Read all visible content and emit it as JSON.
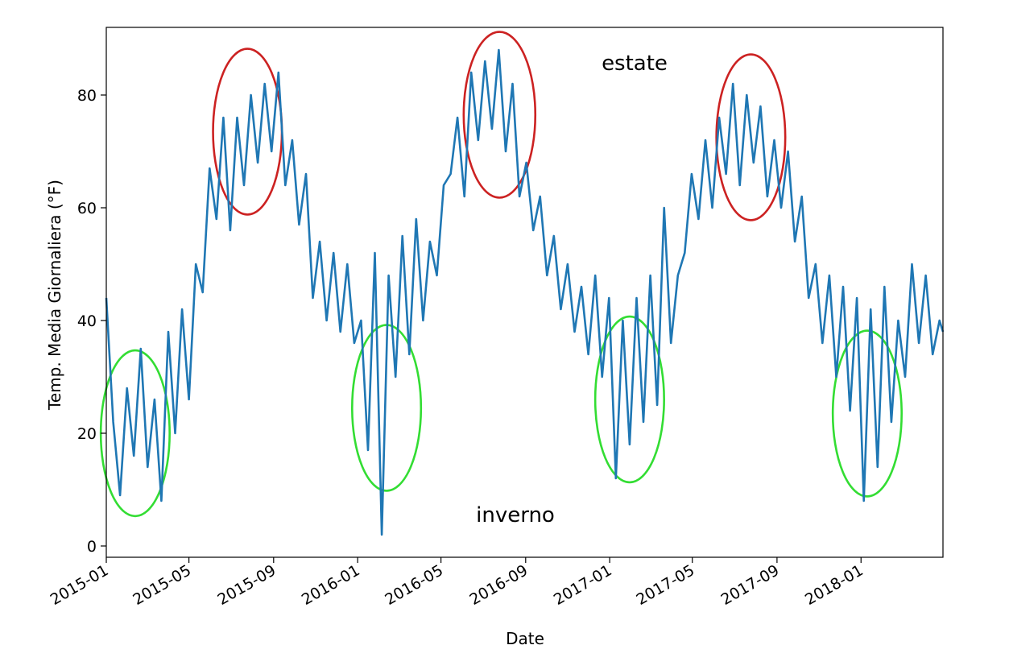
{
  "chart_data": {
    "type": "line",
    "title": "",
    "xlabel": "Date",
    "ylabel": "Temp. Media Giornaliera (°F)",
    "xlim": [
      "2015-01-01",
      "2018-04-30"
    ],
    "ylim": [
      -2,
      92
    ],
    "x_ticks": [
      "2015-01",
      "2015-05",
      "2015-09",
      "2016-01",
      "2016-05",
      "2016-09",
      "2017-01",
      "2017-05",
      "2017-09",
      "2018-01"
    ],
    "y_ticks": [
      0,
      20,
      40,
      60,
      80
    ],
    "grid": false,
    "legend": "none",
    "series": [
      {
        "color": "#1f77b4",
        "x": [
          "2015-01-01",
          "2015-01-11",
          "2015-01-21",
          "2015-01-31",
          "2015-02-10",
          "2015-02-20",
          "2015-03-02",
          "2015-03-12",
          "2015-03-22",
          "2015-04-01",
          "2015-04-11",
          "2015-04-21",
          "2015-05-01",
          "2015-05-11",
          "2015-05-21",
          "2015-05-31",
          "2015-06-10",
          "2015-06-20",
          "2015-06-30",
          "2015-07-10",
          "2015-07-20",
          "2015-07-30",
          "2015-08-09",
          "2015-08-19",
          "2015-08-29",
          "2015-09-08",
          "2015-09-18",
          "2015-09-28",
          "2015-10-08",
          "2015-10-18",
          "2015-10-28",
          "2015-11-07",
          "2015-11-17",
          "2015-11-27",
          "2015-12-07",
          "2015-12-17",
          "2015-12-27",
          "2016-01-06",
          "2016-01-16",
          "2016-01-26",
          "2016-02-05",
          "2016-02-15",
          "2016-02-25",
          "2016-03-06",
          "2016-03-16",
          "2016-03-26",
          "2016-04-05",
          "2016-04-15",
          "2016-04-25",
          "2016-05-05",
          "2016-05-15",
          "2016-05-25",
          "2016-06-04",
          "2016-06-14",
          "2016-06-24",
          "2016-07-04",
          "2016-07-14",
          "2016-07-24",
          "2016-08-03",
          "2016-08-13",
          "2016-08-23",
          "2016-09-02",
          "2016-09-12",
          "2016-09-22",
          "2016-10-02",
          "2016-10-12",
          "2016-10-22",
          "2016-11-01",
          "2016-11-11",
          "2016-11-21",
          "2016-12-01",
          "2016-12-11",
          "2016-12-21",
          "2016-12-31",
          "2017-01-10",
          "2017-01-20",
          "2017-01-30",
          "2017-02-09",
          "2017-02-19",
          "2017-03-01",
          "2017-03-11",
          "2017-03-21",
          "2017-03-31",
          "2017-04-10",
          "2017-04-20",
          "2017-04-30",
          "2017-05-10",
          "2017-05-20",
          "2017-05-30",
          "2017-06-09",
          "2017-06-19",
          "2017-06-29",
          "2017-07-09",
          "2017-07-19",
          "2017-07-29",
          "2017-08-08",
          "2017-08-18",
          "2017-08-28",
          "2017-09-07",
          "2017-09-17",
          "2017-09-27",
          "2017-10-07",
          "2017-10-17",
          "2017-10-27",
          "2017-11-06",
          "2017-11-16",
          "2017-11-26",
          "2017-12-06",
          "2017-12-16",
          "2017-12-26",
          "2018-01-05",
          "2018-01-15",
          "2018-01-25",
          "2018-02-04",
          "2018-02-14",
          "2018-02-24",
          "2018-03-06",
          "2018-03-16",
          "2018-03-26",
          "2018-04-05",
          "2018-04-15",
          "2018-04-25",
          "2018-04-30"
        ],
        "values": [
          44,
          22,
          9,
          28,
          16,
          35,
          14,
          26,
          8,
          38,
          20,
          42,
          26,
          50,
          45,
          67,
          58,
          76,
          56,
          76,
          64,
          80,
          68,
          82,
          70,
          84,
          64,
          72,
          57,
          66,
          44,
          54,
          40,
          52,
          38,
          50,
          36,
          40,
          17,
          52,
          2,
          48,
          30,
          55,
          34,
          58,
          40,
          54,
          48,
          64,
          66,
          76,
          62,
          84,
          72,
          86,
          74,
          88,
          70,
          82,
          62,
          68,
          56,
          62,
          48,
          55,
          42,
          50,
          38,
          46,
          34,
          48,
          30,
          44,
          12,
          40,
          18,
          44,
          22,
          48,
          25,
          60,
          36,
          48,
          52,
          66,
          58,
          72,
          60,
          76,
          66,
          82,
          64,
          80,
          68,
          78,
          62,
          72,
          60,
          70,
          54,
          62,
          44,
          50,
          36,
          48,
          30,
          46,
          24,
          44,
          8,
          42,
          14,
          46,
          22,
          40,
          30,
          50,
          36,
          48,
          34,
          40,
          38
        ]
      }
    ],
    "annotations": [
      {
        "text": "estate",
        "color": "#cc2222"
      },
      {
        "text": "inverno",
        "color": "#33dd33"
      }
    ],
    "highlights": [
      {
        "kind": "summer",
        "color": "#cc2222",
        "center": [
          "2015-07-25",
          73.5
        ],
        "rx_days": 50,
        "ry": 14.7
      },
      {
        "kind": "summer",
        "color": "#cc2222",
        "center": [
          "2016-07-25",
          76.5
        ],
        "rx_days": 52,
        "ry": 14.7
      },
      {
        "kind": "summer",
        "color": "#cc2222",
        "center": [
          "2017-07-25",
          72.5
        ],
        "rx_days": 50,
        "ry": 14.7
      },
      {
        "kind": "winter",
        "color": "#33dd33",
        "center": [
          "2015-02-12",
          20
        ],
        "rx_days": 50,
        "ry": 14.7
      },
      {
        "kind": "winter",
        "color": "#33dd33",
        "center": [
          "2016-02-12",
          24.5
        ],
        "rx_days": 50,
        "ry": 14.7
      },
      {
        "kind": "winter",
        "color": "#33dd33",
        "center": [
          "2017-01-30",
          26
        ],
        "rx_days": 50,
        "ry": 14.7
      },
      {
        "kind": "winter",
        "color": "#33dd33",
        "center": [
          "2018-01-10",
          23.5
        ],
        "rx_days": 50,
        "ry": 14.7
      }
    ]
  }
}
